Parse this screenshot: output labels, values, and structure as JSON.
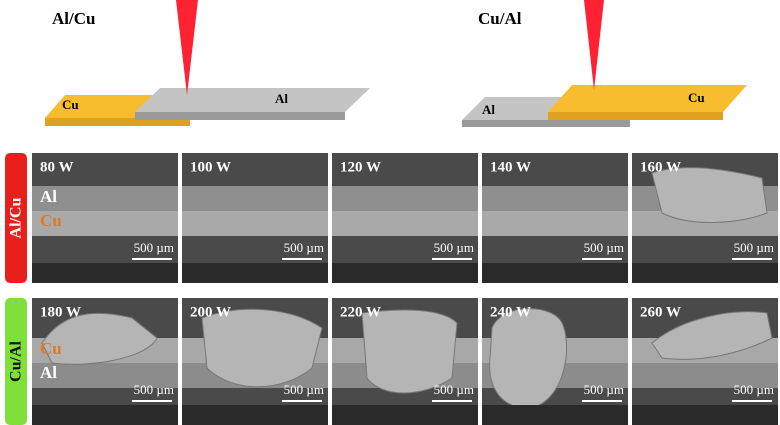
{
  "schematics": [
    {
      "title": "Al/Cu",
      "bottom_plate": "Cu",
      "top_plate": "Al"
    },
    {
      "title": "Cu/Al",
      "bottom_plate": "Al",
      "top_plate": "Cu"
    }
  ],
  "rows": [
    {
      "label": "Al/Cu",
      "layer_labels": [
        "Al",
        "Cu"
      ],
      "images": [
        {
          "power": "80 W",
          "scale": "500 µm"
        },
        {
          "power": "100 W",
          "scale": "500 µm"
        },
        {
          "power": "120 W",
          "scale": "500 µm"
        },
        {
          "power": "140 W",
          "scale": "500 µm"
        },
        {
          "power": "160 W",
          "scale": "500 µm"
        }
      ]
    },
    {
      "label": "Cu/Al",
      "layer_labels": [
        "Cu",
        "Al"
      ],
      "images": [
        {
          "power": "180 W",
          "scale": "500 µm"
        },
        {
          "power": "200 W",
          "scale": "500 µm"
        },
        {
          "power": "220 W",
          "scale": "500 µm"
        },
        {
          "power": "240 W",
          "scale": "500 µm"
        },
        {
          "power": "260 W",
          "scale": "500 µm"
        }
      ]
    }
  ]
}
